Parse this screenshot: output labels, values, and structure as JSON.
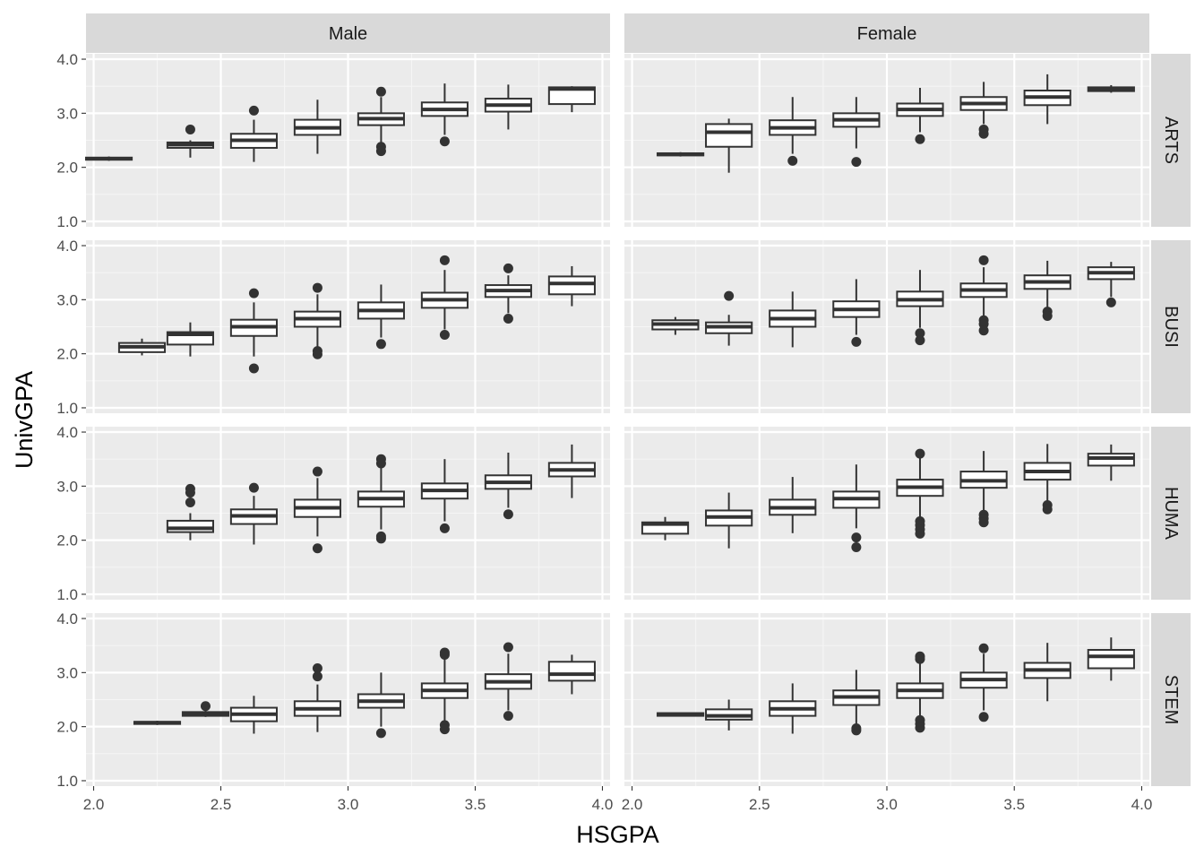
{
  "chart_data": {
    "type": "boxplot",
    "xlabel": "HSGPA",
    "ylabel": "UnivGPA",
    "xlim": [
      1.97,
      4.03
    ],
    "ylim": [
      0.9,
      4.1
    ],
    "x_ticks": [
      2.0,
      2.5,
      3.0,
      3.5,
      4.0
    ],
    "x_tick_labels": [
      "2.0",
      "2.5",
      "3.0",
      "3.5",
      "4.0"
    ],
    "y_ticks": [
      1.0,
      2.0,
      3.0,
      4.0
    ],
    "y_tick_labels": [
      "1.0",
      "2.0",
      "3.0",
      "4.0"
    ],
    "box_width": 0.18,
    "grid": true,
    "facet_cols": [
      "Male",
      "Female"
    ],
    "facet_rows": [
      "ARTS",
      "BUSI",
      "HUMA",
      "STEM"
    ],
    "panels": [
      {
        "row": "ARTS",
        "col": "Male",
        "boxes": [
          {
            "x": 2.06,
            "q1": 2.14,
            "med": 2.16,
            "q3": 2.18,
            "lo": 2.12,
            "hi": 2.2,
            "out": []
          },
          {
            "x": 2.38,
            "q1": 2.36,
            "med": 2.42,
            "q3": 2.46,
            "lo": 2.18,
            "hi": 2.5,
            "out": [
              2.7
            ]
          },
          {
            "x": 2.63,
            "q1": 2.36,
            "med": 2.5,
            "q3": 2.62,
            "lo": 2.1,
            "hi": 2.88,
            "out": [
              3.05
            ]
          },
          {
            "x": 2.88,
            "q1": 2.6,
            "med": 2.73,
            "q3": 2.88,
            "lo": 2.25,
            "hi": 3.25,
            "out": []
          },
          {
            "x": 3.13,
            "q1": 2.78,
            "med": 2.9,
            "q3": 3.0,
            "lo": 2.45,
            "hi": 3.3,
            "out": [
              3.4,
              2.38,
              2.3
            ]
          },
          {
            "x": 3.38,
            "q1": 2.95,
            "med": 3.07,
            "q3": 3.2,
            "lo": 2.6,
            "hi": 3.55,
            "out": [
              2.48
            ]
          },
          {
            "x": 3.63,
            "q1": 3.03,
            "med": 3.15,
            "q3": 3.27,
            "lo": 2.7,
            "hi": 3.53,
            "out": []
          },
          {
            "x": 3.88,
            "q1": 3.17,
            "med": 3.45,
            "q3": 3.48,
            "lo": 3.02,
            "hi": 3.5,
            "out": []
          }
        ]
      },
      {
        "row": "ARTS",
        "col": "Female",
        "boxes": [
          {
            "x": 2.19,
            "q1": 2.22,
            "med": 2.24,
            "q3": 2.26,
            "lo": 2.2,
            "hi": 2.28,
            "out": []
          },
          {
            "x": 2.38,
            "q1": 2.38,
            "med": 2.65,
            "q3": 2.8,
            "lo": 1.9,
            "hi": 2.9,
            "out": []
          },
          {
            "x": 2.63,
            "q1": 2.6,
            "med": 2.73,
            "q3": 2.87,
            "lo": 2.25,
            "hi": 3.3,
            "out": [
              2.12
            ]
          },
          {
            "x": 2.88,
            "q1": 2.75,
            "med": 2.88,
            "q3": 3.0,
            "lo": 2.35,
            "hi": 3.3,
            "out": [
              2.1
            ]
          },
          {
            "x": 3.13,
            "q1": 2.95,
            "med": 3.07,
            "q3": 3.18,
            "lo": 2.65,
            "hi": 3.47,
            "out": [
              2.52
            ]
          },
          {
            "x": 3.38,
            "q1": 3.06,
            "med": 3.18,
            "q3": 3.3,
            "lo": 2.8,
            "hi": 3.58,
            "out": [
              2.7,
              2.62
            ]
          },
          {
            "x": 3.63,
            "q1": 3.15,
            "med": 3.3,
            "q3": 3.42,
            "lo": 2.8,
            "hi": 3.72,
            "out": []
          },
          {
            "x": 3.88,
            "q1": 3.41,
            "med": 3.45,
            "q3": 3.48,
            "lo": 3.38,
            "hi": 3.52,
            "out": []
          }
        ]
      },
      {
        "row": "BUSI",
        "col": "Male",
        "boxes": [
          {
            "x": 2.19,
            "q1": 2.03,
            "med": 2.13,
            "q3": 2.2,
            "lo": 1.97,
            "hi": 2.28,
            "out": []
          },
          {
            "x": 2.38,
            "q1": 2.17,
            "med": 2.36,
            "q3": 2.4,
            "lo": 1.95,
            "hi": 2.58,
            "out": []
          },
          {
            "x": 2.63,
            "q1": 2.33,
            "med": 2.5,
            "q3": 2.63,
            "lo": 1.95,
            "hi": 2.95,
            "out": [
              3.12,
              1.73
            ]
          },
          {
            "x": 2.88,
            "q1": 2.5,
            "med": 2.65,
            "q3": 2.78,
            "lo": 2.12,
            "hi": 3.1,
            "out": [
              3.22,
              2.05,
              1.99
            ]
          },
          {
            "x": 3.13,
            "q1": 2.65,
            "med": 2.8,
            "q3": 2.95,
            "lo": 2.3,
            "hi": 3.28,
            "out": [
              2.18
            ]
          },
          {
            "x": 3.38,
            "q1": 2.85,
            "med": 3.0,
            "q3": 3.13,
            "lo": 2.45,
            "hi": 3.55,
            "out": [
              3.73,
              2.35
            ]
          },
          {
            "x": 3.63,
            "q1": 3.05,
            "med": 3.17,
            "q3": 3.27,
            "lo": 2.75,
            "hi": 3.45,
            "out": [
              3.58,
              2.65
            ]
          },
          {
            "x": 3.88,
            "q1": 3.1,
            "med": 3.3,
            "q3": 3.43,
            "lo": 2.88,
            "hi": 3.62,
            "out": []
          }
        ]
      },
      {
        "row": "BUSI",
        "col": "Female",
        "boxes": [
          {
            "x": 2.17,
            "q1": 2.45,
            "med": 2.55,
            "q3": 2.62,
            "lo": 2.35,
            "hi": 2.68,
            "out": []
          },
          {
            "x": 2.38,
            "q1": 2.38,
            "med": 2.5,
            "q3": 2.58,
            "lo": 2.15,
            "hi": 2.72,
            "out": [
              3.07
            ]
          },
          {
            "x": 2.63,
            "q1": 2.5,
            "med": 2.65,
            "q3": 2.8,
            "lo": 2.12,
            "hi": 3.15,
            "out": []
          },
          {
            "x": 2.88,
            "q1": 2.68,
            "med": 2.82,
            "q3": 2.97,
            "lo": 2.35,
            "hi": 3.38,
            "out": [
              2.22
            ]
          },
          {
            "x": 3.13,
            "q1": 2.88,
            "med": 3.0,
            "q3": 3.15,
            "lo": 2.48,
            "hi": 3.55,
            "out": [
              2.38,
              2.25
            ]
          },
          {
            "x": 3.38,
            "q1": 3.05,
            "med": 3.18,
            "q3": 3.3,
            "lo": 2.7,
            "hi": 3.6,
            "out": [
              3.73,
              2.62,
              2.55,
              2.43
            ]
          },
          {
            "x": 3.63,
            "q1": 3.2,
            "med": 3.33,
            "q3": 3.45,
            "lo": 2.85,
            "hi": 3.72,
            "out": [
              2.78,
              2.7
            ]
          },
          {
            "x": 3.88,
            "q1": 3.38,
            "med": 3.5,
            "q3": 3.6,
            "lo": 3.05,
            "hi": 3.7,
            "out": [
              2.95
            ]
          }
        ]
      },
      {
        "row": "HUMA",
        "col": "Male",
        "boxes": [
          {
            "x": 2.38,
            "q1": 2.15,
            "med": 2.22,
            "q3": 2.36,
            "lo": 2.0,
            "hi": 2.5,
            "out": [
              2.95,
              2.88,
              2.7
            ]
          },
          {
            "x": 2.63,
            "q1": 2.3,
            "med": 2.45,
            "q3": 2.57,
            "lo": 1.92,
            "hi": 2.82,
            "out": [
              2.97
            ]
          },
          {
            "x": 2.88,
            "q1": 2.43,
            "med": 2.6,
            "q3": 2.75,
            "lo": 2.07,
            "hi": 3.15,
            "out": [
              3.27,
              1.85
            ]
          },
          {
            "x": 3.13,
            "q1": 2.62,
            "med": 2.77,
            "q3": 2.9,
            "lo": 2.2,
            "hi": 3.35,
            "out": [
              3.5,
              3.42,
              2.07,
              2.03
            ]
          },
          {
            "x": 3.38,
            "q1": 2.77,
            "med": 2.92,
            "q3": 3.05,
            "lo": 2.35,
            "hi": 3.5,
            "out": [
              2.22
            ]
          },
          {
            "x": 3.63,
            "q1": 2.95,
            "med": 3.07,
            "q3": 3.2,
            "lo": 2.6,
            "hi": 3.62,
            "out": [
              2.48
            ]
          },
          {
            "x": 3.88,
            "q1": 3.18,
            "med": 3.3,
            "q3": 3.43,
            "lo": 2.78,
            "hi": 3.77,
            "out": []
          }
        ]
      },
      {
        "row": "HUMA",
        "col": "Female",
        "boxes": [
          {
            "x": 2.13,
            "q1": 2.12,
            "med": 2.3,
            "q3": 2.33,
            "lo": 2.0,
            "hi": 2.43,
            "out": []
          },
          {
            "x": 2.38,
            "q1": 2.27,
            "med": 2.43,
            "q3": 2.55,
            "lo": 1.85,
            "hi": 2.88,
            "out": []
          },
          {
            "x": 2.63,
            "q1": 2.47,
            "med": 2.6,
            "q3": 2.75,
            "lo": 2.13,
            "hi": 3.17,
            "out": []
          },
          {
            "x": 2.88,
            "q1": 2.6,
            "med": 2.77,
            "q3": 2.9,
            "lo": 2.22,
            "hi": 3.4,
            "out": [
              2.05,
              1.87
            ]
          },
          {
            "x": 3.13,
            "q1": 2.82,
            "med": 2.98,
            "q3": 3.12,
            "lo": 2.43,
            "hi": 3.52,
            "out": [
              3.6,
              2.35,
              2.28,
              2.2,
              2.12
            ]
          },
          {
            "x": 3.38,
            "q1": 2.97,
            "med": 3.1,
            "q3": 3.27,
            "lo": 2.55,
            "hi": 3.65,
            "out": [
              2.47,
              2.4,
              2.33
            ]
          },
          {
            "x": 3.63,
            "q1": 3.12,
            "med": 3.27,
            "q3": 3.43,
            "lo": 2.72,
            "hi": 3.78,
            "out": [
              2.65,
              2.57
            ]
          },
          {
            "x": 3.88,
            "q1": 3.38,
            "med": 3.52,
            "q3": 3.6,
            "lo": 3.1,
            "hi": 3.77,
            "out": []
          }
        ]
      },
      {
        "row": "STEM",
        "col": "Male",
        "boxes": [
          {
            "x": 2.25,
            "q1": 2.05,
            "med": 2.07,
            "q3": 2.09,
            "lo": 2.03,
            "hi": 2.11,
            "out": []
          },
          {
            "x": 2.44,
            "q1": 2.2,
            "med": 2.23,
            "q3": 2.27,
            "lo": 2.18,
            "hi": 2.3,
            "out": [
              2.38
            ]
          },
          {
            "x": 2.63,
            "q1": 2.1,
            "med": 2.23,
            "q3": 2.35,
            "lo": 1.87,
            "hi": 2.57,
            "out": []
          },
          {
            "x": 2.88,
            "q1": 2.2,
            "med": 2.33,
            "q3": 2.47,
            "lo": 1.9,
            "hi": 2.78,
            "out": [
              3.08,
              2.93
            ]
          },
          {
            "x": 3.13,
            "q1": 2.35,
            "med": 2.47,
            "q3": 2.6,
            "lo": 2.0,
            "hi": 3.0,
            "out": [
              1.88
            ]
          },
          {
            "x": 3.38,
            "q1": 2.53,
            "med": 2.67,
            "q3": 2.8,
            "lo": 2.1,
            "hi": 3.25,
            "out": [
              3.37,
              3.33,
              2.03,
              1.95
            ]
          },
          {
            "x": 3.63,
            "q1": 2.7,
            "med": 2.83,
            "q3": 2.97,
            "lo": 2.3,
            "hi": 3.35,
            "out": [
              3.47,
              2.2
            ]
          },
          {
            "x": 3.88,
            "q1": 2.85,
            "med": 2.97,
            "q3": 3.2,
            "lo": 2.6,
            "hi": 3.33,
            "out": []
          }
        ]
      },
      {
        "row": "STEM",
        "col": "Female",
        "boxes": [
          {
            "x": 2.19,
            "q1": 2.2,
            "med": 2.23,
            "q3": 2.25,
            "lo": 2.2,
            "hi": 2.25,
            "out": []
          },
          {
            "x": 2.38,
            "q1": 2.13,
            "med": 2.2,
            "q3": 2.32,
            "lo": 1.93,
            "hi": 2.5,
            "out": []
          },
          {
            "x": 2.63,
            "q1": 2.2,
            "med": 2.33,
            "q3": 2.47,
            "lo": 1.87,
            "hi": 2.8,
            "out": []
          },
          {
            "x": 2.88,
            "q1": 2.4,
            "med": 2.55,
            "q3": 2.67,
            "lo": 2.05,
            "hi": 3.05,
            "out": [
              1.97,
              1.93
            ]
          },
          {
            "x": 3.13,
            "q1": 2.53,
            "med": 2.67,
            "q3": 2.8,
            "lo": 2.2,
            "hi": 3.2,
            "out": [
              3.3,
              3.25,
              2.12,
              2.05,
              1.98
            ]
          },
          {
            "x": 3.38,
            "q1": 2.72,
            "med": 2.87,
            "q3": 3.0,
            "lo": 2.3,
            "hi": 3.35,
            "out": [
              3.45,
              2.18
            ]
          },
          {
            "x": 3.63,
            "q1": 2.9,
            "med": 3.05,
            "q3": 3.18,
            "lo": 2.47,
            "hi": 3.55,
            "out": []
          },
          {
            "x": 3.88,
            "q1": 3.08,
            "med": 3.3,
            "q3": 3.42,
            "lo": 2.85,
            "hi": 3.65,
            "out": []
          }
        ]
      }
    ]
  }
}
